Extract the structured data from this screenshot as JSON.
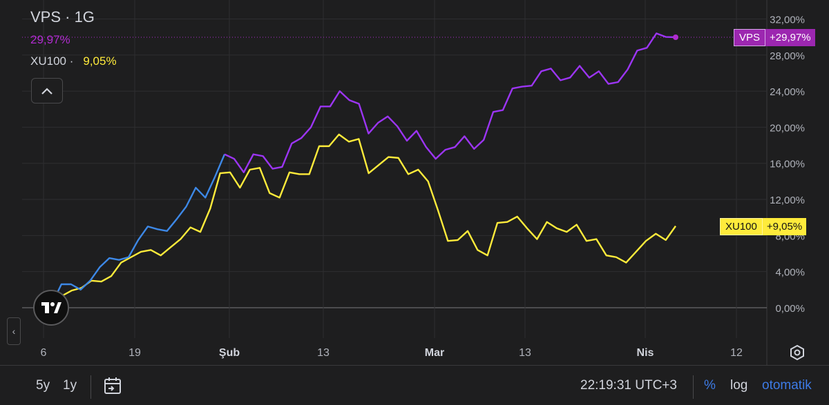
{
  "header": {
    "title": "VPS · 1G",
    "vps_value": "29,97%",
    "xu_label": "XU100 ·",
    "xu_value": "9,05%"
  },
  "pills": {
    "vps_name": "VPS",
    "vps_pct": "+29,97%",
    "xu_name": "XU100",
    "xu_pct": "+9,05%"
  },
  "bottom": {
    "range_5y": "5y",
    "range_1y": "1y",
    "clock": "22:19:31 UTC+3",
    "percent": "%",
    "log": "log",
    "auto": "otomatik"
  },
  "colors": {
    "vps": "#9c35f5",
    "vps_label": "#b02ccf",
    "xu100": "#ffeb3b",
    "vps_early": "#3d88e6",
    "grid": "#2e2e30",
    "axis_text": "#b0b3bb"
  },
  "chart_data": {
    "type": "line",
    "title": "VPS · 1G",
    "y_axis": {
      "ticks": [
        0,
        4,
        8,
        12,
        16,
        20,
        24,
        28,
        32
      ],
      "tick_labels": [
        "0,00%",
        "4,00%",
        "8,00%",
        "12,00%",
        "16,00%",
        "20,00%",
        "24,00%",
        "28,00%",
        "32,00%"
      ],
      "range": [
        -2,
        34
      ],
      "unit": "%"
    },
    "x_axis": {
      "tick_labels": [
        "6",
        "19",
        "Şub",
        "13",
        "Mar",
        "13",
        "Nis",
        "12"
      ],
      "bold_labels": [
        "Şub",
        "Mar",
        "Nis"
      ]
    },
    "grid": true,
    "last_values": {
      "VPS": 29.97,
      "XU100": 9.05
    },
    "series": [
      {
        "name": "VPS",
        "color": "#9c35f5",
        "values": [
          0.4,
          2.6,
          2.6,
          2.0,
          3.0,
          4.5,
          5.5,
          5.3,
          5.6,
          7.5,
          9.0,
          8.7,
          8.5,
          9.8,
          11.2,
          13.3,
          12.2,
          14.5,
          17.0,
          16.5,
          15.0,
          17.0,
          16.8,
          15.4,
          15.6,
          18.2,
          18.8,
          20.0,
          22.3,
          22.3,
          24.0,
          23.0,
          22.6,
          19.3,
          20.5,
          21.2,
          20.1,
          18.5,
          19.6,
          17.8,
          16.5,
          17.5,
          17.8,
          19.0,
          17.6,
          18.6,
          21.7,
          21.9,
          24.3,
          24.5,
          24.6,
          26.2,
          26.5,
          25.2,
          25.5,
          26.8,
          25.5,
          26.2,
          24.8,
          25.0,
          26.4,
          28.5,
          28.8,
          30.4,
          30.0,
          29.97
        ]
      },
      {
        "name": "XU100",
        "color": "#ffeb3b",
        "values": [
          0.5,
          1.3,
          1.9,
          2.2,
          3.0,
          2.9,
          3.5,
          5.0,
          5.6,
          6.2,
          6.4,
          5.8,
          6.7,
          7.6,
          8.9,
          8.4,
          11.0,
          14.9,
          15.0,
          13.3,
          15.3,
          15.5,
          12.7,
          12.2,
          15.0,
          14.8,
          14.8,
          17.9,
          17.9,
          19.2,
          18.4,
          18.7,
          14.9,
          15.8,
          16.7,
          16.6,
          14.8,
          15.3,
          14.0,
          10.8,
          7.4,
          7.5,
          8.5,
          6.4,
          5.8,
          9.4,
          9.5,
          10.1,
          8.8,
          7.6,
          9.5,
          8.8,
          8.4,
          9.2,
          7.4,
          7.6,
          5.8,
          5.6,
          5.0,
          6.2,
          7.4,
          8.2,
          7.5,
          9.05
        ]
      }
    ]
  }
}
